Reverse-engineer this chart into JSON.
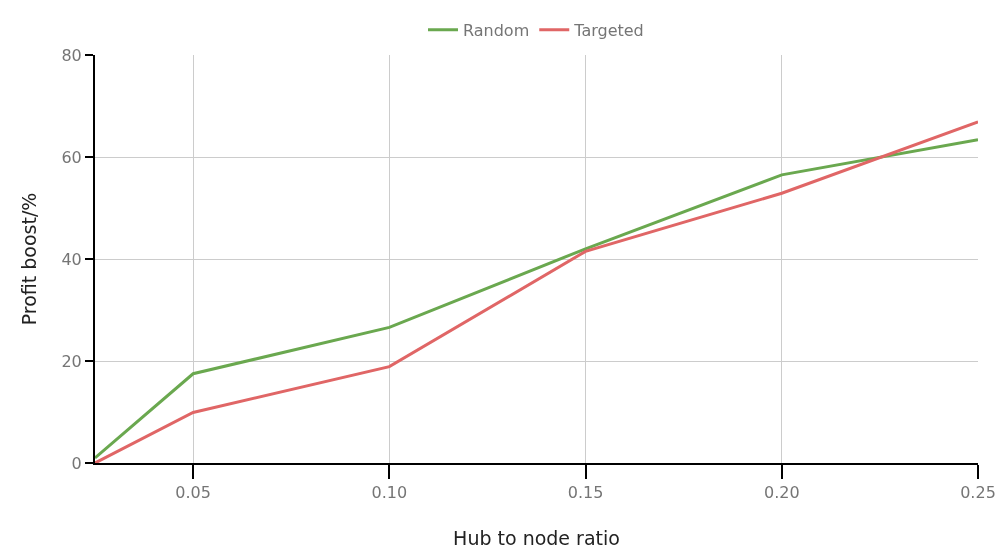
{
  "chart_data": {
    "type": "line",
    "xlabel": "Hub to node ratio",
    "ylabel": "Profit boost/%",
    "x": [
      0.025,
      0.05,
      0.1,
      0.15,
      0.2,
      0.25
    ],
    "series": [
      {
        "name": "Random",
        "color": "#6aa84f",
        "values": [
          1,
          17.5,
          26.6,
          42,
          56.5,
          63.4
        ]
      },
      {
        "name": "Targeted",
        "color": "#e06666",
        "values": [
          0,
          9.9,
          18.9,
          41.5,
          52.9,
          66.9
        ]
      }
    ],
    "xlim": [
      0.025,
      0.25
    ],
    "xticks": [
      {
        "value": 0.05,
        "label": "0.05"
      },
      {
        "value": 0.1,
        "label": "0.10"
      },
      {
        "value": 0.15,
        "label": "0.15"
      },
      {
        "value": 0.2,
        "label": "0.20"
      },
      {
        "value": 0.25,
        "label": "0.25"
      }
    ],
    "ylim": [
      0,
      80
    ],
    "yticks": [
      0,
      20,
      40,
      60,
      80
    ],
    "grid": true,
    "legend": "top",
    "marker": "none",
    "line_style": "solid"
  }
}
